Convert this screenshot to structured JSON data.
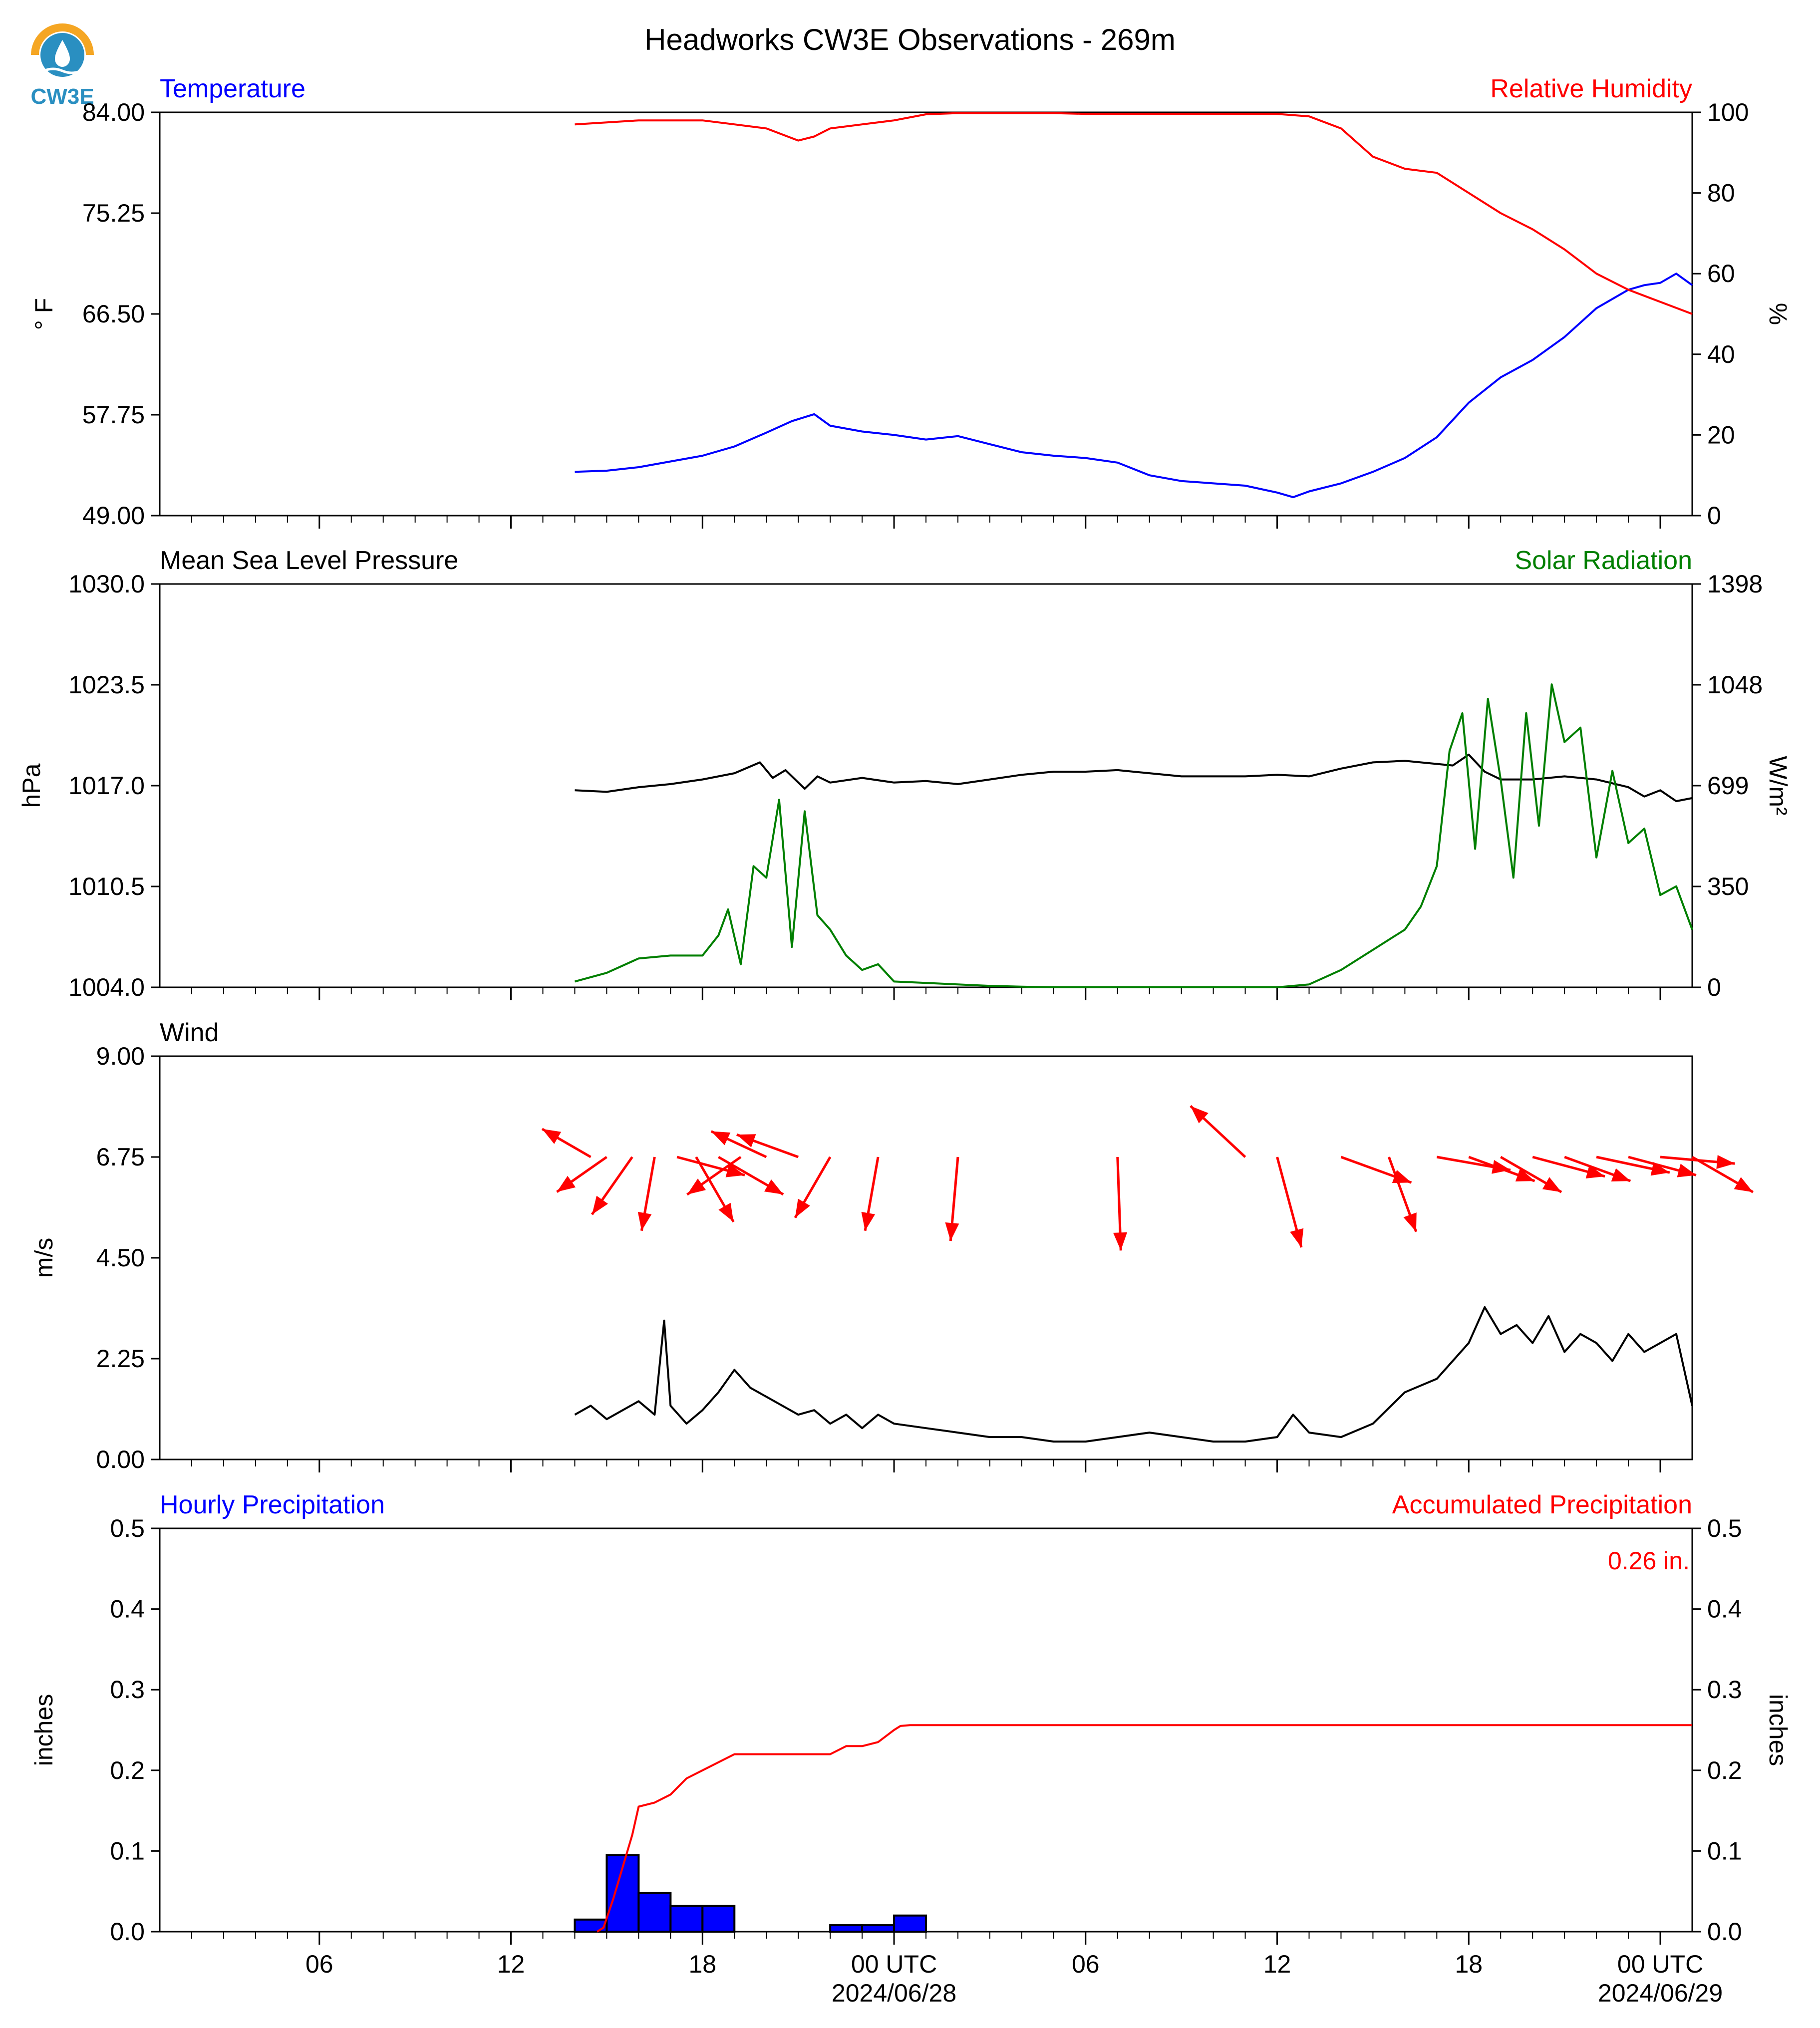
{
  "page": {
    "title": "Headworks CW3E Observations - 269m",
    "logo_text": "CW3E"
  },
  "colors": {
    "temperature": "#0000ff",
    "humidity": "#ff0000",
    "pressure": "#000000",
    "solar": "#007f00",
    "wind_speed": "#000000",
    "wind_arrow": "#ff0000",
    "hourly_precip_bar": "#0000ff",
    "accum_precip": "#ff0000",
    "logo_orange": "#f5a623",
    "logo_blue": "#2a8fc1"
  },
  "x_axis": {
    "range_hours": [
      0,
      48
    ],
    "comment_units": "hours since the left edge of the plotted window",
    "major_ticks": [
      {
        "hour": 5,
        "label": "06",
        "sublabel": ""
      },
      {
        "hour": 11,
        "label": "12",
        "sublabel": ""
      },
      {
        "hour": 17,
        "label": "18",
        "sublabel": ""
      },
      {
        "hour": 23,
        "label": "00 UTC",
        "sublabel": "2024/06/28"
      },
      {
        "hour": 29,
        "label": "06",
        "sublabel": ""
      },
      {
        "hour": 35,
        "label": "12",
        "sublabel": ""
      },
      {
        "hour": 41,
        "label": "18",
        "sublabel": ""
      },
      {
        "hour": 47,
        "label": "00 UTC",
        "sublabel": "2024/06/29"
      }
    ]
  },
  "chart_data": [
    {
      "type": "line",
      "panel": "temperature_humidity",
      "left_title": "Temperature",
      "right_title": "Relative Humidity",
      "ylabel": "° F",
      "ylabel_right": "%",
      "ylim": [
        49.0,
        84.0
      ],
      "yticks": [
        "49.00",
        "57.75",
        "66.50",
        "75.25",
        "84.00"
      ],
      "ylim_right": [
        0,
        100
      ],
      "yticks_right": [
        "0",
        "20",
        "40",
        "60",
        "80",
        "100"
      ],
      "series": [
        {
          "name": "Temperature",
          "axis": "left",
          "x": [
            13,
            14,
            15,
            16,
            17,
            18,
            19,
            19.8,
            20.5,
            21,
            22,
            23,
            24,
            25,
            26,
            27,
            28,
            29,
            30,
            31,
            32,
            33,
            34,
            35,
            35.5,
            36,
            37,
            38,
            39,
            40,
            41,
            42,
            43,
            44,
            45,
            46,
            46.5,
            47,
            47.5,
            48
          ],
          "y": [
            52.8,
            52.9,
            53.2,
            53.7,
            54.2,
            55.0,
            56.2,
            57.2,
            57.8,
            56.8,
            56.3,
            56.0,
            55.6,
            55.9,
            55.2,
            54.5,
            54.2,
            54.0,
            53.6,
            52.5,
            52.0,
            51.8,
            51.6,
            51.0,
            50.6,
            51.1,
            51.8,
            52.8,
            54.0,
            55.8,
            58.8,
            61.0,
            62.5,
            64.5,
            67.0,
            68.6,
            69.0,
            69.2,
            70.0,
            69.0
          ]
        },
        {
          "name": "Relative Humidity",
          "axis": "right",
          "x": [
            13,
            14,
            15,
            16,
            17,
            18,
            19,
            20,
            20.5,
            21,
            22,
            23,
            24,
            25,
            26,
            27,
            28,
            29,
            30,
            31,
            32,
            33,
            34,
            35,
            36,
            37,
            38,
            39,
            40,
            41,
            42,
            43,
            44,
            45,
            46,
            47,
            48
          ],
          "y": [
            97,
            97.5,
            98,
            98,
            98,
            97,
            96,
            93,
            94,
            96,
            97,
            98,
            99.5,
            99.8,
            99.8,
            99.8,
            99.8,
            99.6,
            99.6,
            99.6,
            99.6,
            99.6,
            99.6,
            99.6,
            99,
            96,
            89,
            86,
            85,
            80,
            75,
            71,
            66,
            60,
            56,
            53,
            50
          ]
        }
      ]
    },
    {
      "type": "line",
      "panel": "pressure_solar",
      "left_title": "Mean Sea Level Pressure",
      "right_title": "Solar Radiation",
      "ylabel": "hPa",
      "ylabel_right": "W/m²",
      "ylim": [
        1004.0,
        1030.0
      ],
      "yticks": [
        "1004.0",
        "1010.5",
        "1017.0",
        "1023.5",
        "1030.0"
      ],
      "ylim_right": [
        0,
        1398
      ],
      "yticks_right": [
        "0",
        "350",
        "699",
        "1048",
        "1398"
      ],
      "series": [
        {
          "name": "Mean Sea Level Pressure",
          "axis": "left",
          "x": [
            13,
            14,
            15,
            16,
            17,
            18,
            18.8,
            19.2,
            19.6,
            20.2,
            20.6,
            21,
            22,
            23,
            24,
            25,
            26,
            27,
            28,
            29,
            30,
            31,
            32,
            33,
            34,
            35,
            36,
            37,
            38,
            39,
            40,
            40.5,
            41,
            41.5,
            42,
            43,
            44,
            45,
            46,
            46.5,
            47,
            47.5,
            48
          ],
          "y": [
            1016.7,
            1016.6,
            1016.9,
            1017.1,
            1017.4,
            1017.8,
            1018.5,
            1017.5,
            1018.0,
            1016.8,
            1017.6,
            1017.2,
            1017.5,
            1017.2,
            1017.3,
            1017.1,
            1017.4,
            1017.7,
            1017.9,
            1017.9,
            1018.0,
            1017.8,
            1017.6,
            1017.6,
            1017.6,
            1017.7,
            1017.6,
            1018.1,
            1018.5,
            1018.6,
            1018.4,
            1018.3,
            1019.0,
            1017.9,
            1017.4,
            1017.4,
            1017.6,
            1017.4,
            1016.9,
            1016.3,
            1016.7,
            1016.0,
            1016.2
          ]
        },
        {
          "name": "Solar Radiation",
          "axis": "right",
          "x": [
            13,
            14,
            15,
            16,
            17,
            17.5,
            17.8,
            18.2,
            18.6,
            19.0,
            19.4,
            19.8,
            20.2,
            20.6,
            21,
            21.5,
            22,
            22.5,
            23,
            24,
            25,
            26,
            27,
            28,
            29,
            30,
            31,
            32,
            33,
            34,
            35,
            36,
            37,
            38,
            39,
            39.5,
            40,
            40.4,
            40.8,
            41.2,
            41.6,
            42,
            42.4,
            42.8,
            43.2,
            43.6,
            44,
            44.5,
            45,
            45.5,
            46,
            46.5,
            47,
            47.5,
            48
          ],
          "y": [
            20,
            50,
            100,
            110,
            110,
            180,
            270,
            80,
            420,
            380,
            650,
            140,
            610,
            250,
            200,
            110,
            60,
            80,
            20,
            15,
            10,
            5,
            2,
            0,
            0,
            0,
            0,
            0,
            0,
            0,
            0,
            10,
            60,
            130,
            200,
            280,
            420,
            820,
            950,
            480,
            1000,
            720,
            380,
            950,
            560,
            1050,
            850,
            900,
            450,
            750,
            500,
            550,
            320,
            350,
            200
          ]
        }
      ]
    },
    {
      "type": "line",
      "panel": "wind",
      "left_title": "Wind",
      "ylabel": "m/s",
      "ylim": [
        0.0,
        9.0
      ],
      "yticks": [
        "0.00",
        "2.25",
        "4.50",
        "6.75",
        "9.00"
      ],
      "series": [
        {
          "name": "Wind",
          "axis": "left",
          "x": [
            13,
            13.5,
            14,
            14.5,
            15,
            15.5,
            15.8,
            16,
            16.5,
            17,
            17.5,
            18,
            18.5,
            19,
            19.5,
            20,
            20.5,
            21,
            21.5,
            22,
            22.5,
            23,
            24,
            25,
            26,
            27,
            28,
            29,
            30,
            31,
            32,
            33,
            34,
            35,
            35.5,
            36,
            37,
            38,
            39,
            40,
            40.5,
            41,
            41.5,
            42,
            42.5,
            43,
            43.5,
            44,
            44.5,
            45,
            45.5,
            46,
            46.5,
            47,
            47.5,
            48
          ],
          "y": [
            1.0,
            1.2,
            0.9,
            1.1,
            1.3,
            1.0,
            3.1,
            1.2,
            0.8,
            1.1,
            1.5,
            2.0,
            1.6,
            1.4,
            1.2,
            1.0,
            1.1,
            0.8,
            1.0,
            0.7,
            1.0,
            0.8,
            0.7,
            0.6,
            0.5,
            0.5,
            0.4,
            0.4,
            0.5,
            0.6,
            0.5,
            0.4,
            0.4,
            0.5,
            1.0,
            0.6,
            0.5,
            0.8,
            1.5,
            1.8,
            2.2,
            2.6,
            3.4,
            2.8,
            3.0,
            2.6,
            3.2,
            2.4,
            2.8,
            2.6,
            2.2,
            2.8,
            2.4,
            2.6,
            2.8,
            1.2
          ]
        }
      ],
      "arrows": [
        {
          "x": 13.5,
          "angle_deg": 150,
          "speed": 1.2
        },
        {
          "x": 14.0,
          "angle_deg": 215,
          "speed": 1.3
        },
        {
          "x": 14.8,
          "angle_deg": 235,
          "speed": 1.5
        },
        {
          "x": 15.5,
          "angle_deg": 260,
          "speed": 1.6
        },
        {
          "x": 16.2,
          "angle_deg": 345,
          "speed": 1.5
        },
        {
          "x": 16.8,
          "angle_deg": 300,
          "speed": 1.6
        },
        {
          "x": 17.5,
          "angle_deg": 330,
          "speed": 1.6
        },
        {
          "x": 18.2,
          "angle_deg": 215,
          "speed": 1.4
        },
        {
          "x": 19.0,
          "angle_deg": 155,
          "speed": 1.3
        },
        {
          "x": 20.0,
          "angle_deg": 160,
          "speed": 1.4
        },
        {
          "x": 21.0,
          "angle_deg": 240,
          "speed": 1.5
        },
        {
          "x": 22.5,
          "angle_deg": 260,
          "speed": 1.6
        },
        {
          "x": 25.0,
          "angle_deg": 265,
          "speed": 1.8
        },
        {
          "x": 30.0,
          "angle_deg": 272,
          "speed": 2.0
        },
        {
          "x": 34.0,
          "angle_deg": 137,
          "speed": 1.6
        },
        {
          "x": 35.0,
          "angle_deg": 285,
          "speed": 2.0
        },
        {
          "x": 37.0,
          "angle_deg": 340,
          "speed": 1.6
        },
        {
          "x": 38.5,
          "angle_deg": 290,
          "speed": 1.7
        },
        {
          "x": 40.0,
          "angle_deg": 350,
          "speed": 1.6
        },
        {
          "x": 41.0,
          "angle_deg": 340,
          "speed": 1.5
        },
        {
          "x": 42.0,
          "angle_deg": 330,
          "speed": 1.5
        },
        {
          "x": 43.0,
          "angle_deg": 345,
          "speed": 1.6
        },
        {
          "x": 44.0,
          "angle_deg": 340,
          "speed": 1.5
        },
        {
          "x": 45.0,
          "angle_deg": 348,
          "speed": 1.6
        },
        {
          "x": 46.0,
          "angle_deg": 345,
          "speed": 1.5
        },
        {
          "x": 47.0,
          "angle_deg": 355,
          "speed": 1.6
        },
        {
          "x": 48.0,
          "angle_deg": 330,
          "speed": 1.5
        }
      ]
    },
    {
      "type": "bar",
      "panel": "precipitation",
      "left_title": "Hourly Precipitation",
      "right_title": "Accumulated Precipitation",
      "total_label": "0.26 in.",
      "ylabel": "inches",
      "ylabel_right": "inches",
      "ylim": [
        0.0,
        0.5
      ],
      "yticks": [
        "0.0",
        "0.1",
        "0.2",
        "0.3",
        "0.4",
        "0.5"
      ],
      "ylim_right": [
        0.0,
        0.5
      ],
      "yticks_right": [
        "0.0",
        "0.1",
        "0.2",
        "0.3",
        "0.4",
        "0.5"
      ],
      "bars": [
        {
          "x_start": 13,
          "x_end": 14,
          "value": 0.015
        },
        {
          "x_start": 14,
          "x_end": 15,
          "value": 0.095
        },
        {
          "x_start": 15,
          "x_end": 16,
          "value": 0.048
        },
        {
          "x_start": 16,
          "x_end": 17,
          "value": 0.032
        },
        {
          "x_start": 17,
          "x_end": 18,
          "value": 0.032
        },
        {
          "x_start": 21,
          "x_end": 22,
          "value": 0.008
        },
        {
          "x_start": 22,
          "x_end": 23,
          "value": 0.008
        },
        {
          "x_start": 23,
          "x_end": 24,
          "value": 0.02
        }
      ],
      "series": [
        {
          "name": "Accumulated Precipitation",
          "axis": "right",
          "x": [
            13.7,
            13.9,
            14.2,
            14.5,
            14.8,
            15.0,
            15.5,
            16.0,
            16.5,
            17.0,
            17.5,
            18.0,
            19.0,
            20.0,
            21.0,
            21.5,
            22.0,
            22.5,
            23.0,
            23.2,
            23.5,
            24.0,
            48.0
          ],
          "y": [
            0.0,
            0.005,
            0.04,
            0.08,
            0.12,
            0.155,
            0.16,
            0.17,
            0.19,
            0.2,
            0.21,
            0.22,
            0.22,
            0.22,
            0.22,
            0.23,
            0.23,
            0.235,
            0.25,
            0.255,
            0.256,
            0.256,
            0.256
          ]
        }
      ]
    }
  ]
}
